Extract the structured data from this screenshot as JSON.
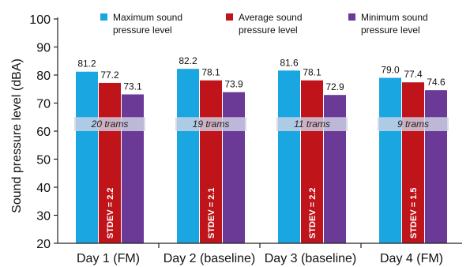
{
  "chart_data": {
    "type": "bar",
    "ylabel": "Sound pressure level  (dBA)",
    "ylim": [
      20,
      100
    ],
    "yticks": [
      20,
      30,
      40,
      50,
      60,
      70,
      80,
      90,
      100
    ],
    "categories": [
      "Day 1 (FM)",
      "Day 2 (baseline)",
      "Day 3 (baseline)",
      "Day 4 (FM)"
    ],
    "series": [
      {
        "name": "Maximum sound pressure level",
        "legend_lines": [
          "Maximum sound",
          "pressure level"
        ],
        "color": "#1aa6e0",
        "values": [
          81.2,
          82.2,
          81.6,
          79.0
        ],
        "labels": [
          "81.2",
          "82.2",
          "81.6",
          "79.0"
        ]
      },
      {
        "name": "Average sound pressure level",
        "legend_lines": [
          "Average sound",
          "pressure level"
        ],
        "color": "#c0141b",
        "values": [
          77.2,
          78.1,
          78.1,
          77.4
        ],
        "labels": [
          "77.2",
          "78.1",
          "78.1",
          "77.4"
        ]
      },
      {
        "name": "Minimum sound pressure level",
        "legend_lines": [
          "Minimum sound",
          "pressure level"
        ],
        "color": "#6a3a96",
        "values": [
          73.1,
          73.9,
          72.9,
          74.6
        ],
        "labels": [
          "73.1",
          "73.9",
          "72.9",
          "74.6"
        ]
      }
    ],
    "trams": [
      "20 trams",
      "19 trams",
      "11 trams",
      "9 trams"
    ],
    "tram_band": [
      60,
      65
    ],
    "stdev": [
      "STDEV = 2.2",
      "STDEV = 2.1",
      "STDEV = 2.2",
      "STDEV = 1.5"
    ],
    "grid": false,
    "legend_position": "top"
  }
}
